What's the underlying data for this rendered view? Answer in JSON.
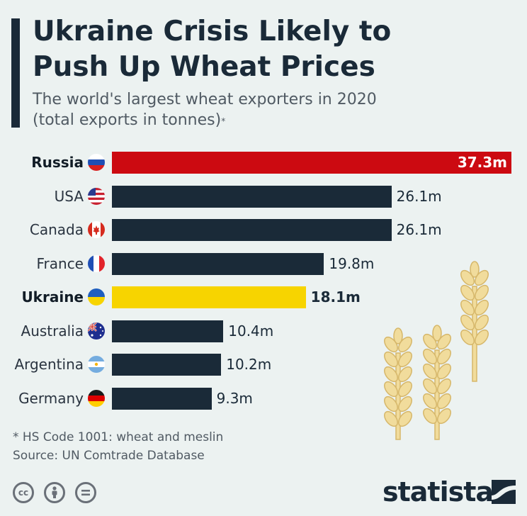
{
  "header": {
    "title": "Ukraine Crisis Likely to\nPush Up Wheat Prices",
    "subtitle_line1": "The world's largest wheat exporters in 2020",
    "subtitle_line2": "(total exports in tonnes)",
    "subtitle_mark": "*"
  },
  "chart_data": {
    "type": "bar",
    "orientation": "horizontal",
    "categories": [
      "Russia",
      "USA",
      "Canada",
      "France",
      "Ukraine",
      "Australia",
      "Argentina",
      "Germany"
    ],
    "values": [
      37.3,
      26.1,
      26.1,
      19.8,
      18.1,
      10.4,
      10.2,
      9.3
    ],
    "value_labels": [
      "37.3m",
      "26.1m",
      "26.1m",
      "19.8m",
      "18.1m",
      "10.4m",
      "10.2m",
      "9.3m"
    ],
    "unit": "million tonnes",
    "bar_colors": [
      "#cc0a11",
      "#1a2a38",
      "#1a2a38",
      "#1a2a38",
      "#f7d400",
      "#1a2a38",
      "#1a2a38",
      "#1a2a38"
    ],
    "bold": [
      true,
      false,
      false,
      false,
      true,
      false,
      false,
      false
    ],
    "flags": [
      "russia-flag",
      "usa-flag",
      "canada-flag",
      "france-flag",
      "ukraine-flag",
      "australia-flag",
      "argentina-flag",
      "germany-flag"
    ],
    "xlim": [
      0,
      37.3
    ],
    "grid": false,
    "legend": "none"
  },
  "footer": {
    "footnote": "* HS Code 1001: wheat and meslin",
    "source": "Source: UN Comtrade Database",
    "brand": "statista",
    "license_icons": [
      "creative-commons-icon",
      "attribution-icon",
      "no-derivatives-icon"
    ]
  },
  "colors": {
    "background": "#ecf2f1",
    "primary": "#1a2a38",
    "highlight_red": "#cc0a11",
    "highlight_yellow": "#f7d400",
    "wheat": "#f1dc9c",
    "wheat_outline": "#d6b76a"
  }
}
